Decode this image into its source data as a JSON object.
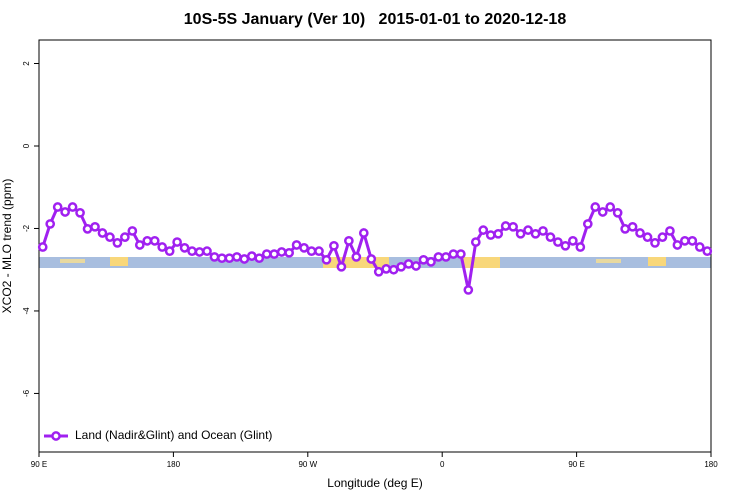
{
  "chart_data": {
    "type": "line",
    "title": "10S-5S January (Ver 10)   2015-01-01 to 2020-12-18",
    "x_label": "Longitude (deg E)",
    "y_label": "XCO2 - MLO trend (ppm)",
    "x": [
      92.5,
      97.5,
      102.5,
      107.5,
      112.5,
      117.5,
      122.5,
      127.5,
      132.5,
      137.5,
      142.5,
      147.5,
      152.5,
      157.5,
      162.5,
      167.5,
      172.5,
      177.5,
      182.5,
      187.5,
      192.5,
      197.5,
      202.5,
      207.5,
      212.5,
      217.5,
      222.5,
      227.5,
      232.5,
      237.5,
      242.5,
      247.5,
      252.5,
      257.5,
      262.5,
      267.5,
      272.5,
      277.5,
      282.5,
      287.5,
      292.5,
      297.5,
      302.5,
      307.5,
      312.5,
      317.5,
      322.5,
      327.5,
      332.5,
      337.5,
      342.5,
      347.5,
      352.5,
      357.5,
      362.5,
      367.5,
      372.5,
      377.5,
      382.5,
      387.5,
      392.5,
      397.5,
      402.5,
      407.5,
      412.5,
      417.5,
      422.5,
      427.5,
      432.5,
      437.5,
      442.5,
      447.5,
      452.5,
      457.5,
      462.5,
      467.5,
      472.5,
      477.5,
      482.5,
      487.5,
      492.5,
      497.5,
      502.5,
      507.5,
      512.5,
      517.5,
      522.5,
      527.5,
      532.5,
      537.5
    ],
    "series": [
      {
        "name": "Land (Nadir&Glint) and Ocean (Glint)",
        "color": "#a020f0",
        "values": [
          -2.45,
          -1.89,
          -1.48,
          -1.6,
          -1.48,
          -1.62,
          -2.01,
          -1.96,
          -2.11,
          -2.21,
          -2.35,
          -2.21,
          -2.06,
          -2.4,
          -2.3,
          -2.3,
          -2.45,
          -2.55,
          -2.33,
          -2.47,
          -2.55,
          -2.57,
          -2.55,
          -2.69,
          -2.72,
          -2.72,
          -2.69,
          -2.74,
          -2.67,
          -2.72,
          -2.62,
          -2.62,
          -2.57,
          -2.59,
          -2.4,
          -2.47,
          -2.55,
          -2.55,
          -2.76,
          -2.42,
          -2.93,
          -2.3,
          -2.69,
          -2.11,
          -2.74,
          -3.05,
          -2.98,
          -3.0,
          -2.93,
          -2.86,
          -2.91,
          -2.76,
          -2.81,
          -2.69,
          -2.69,
          -2.62,
          -2.62,
          -3.49,
          -2.33,
          -2.04,
          -2.16,
          -2.13,
          -1.94,
          -1.96,
          -2.13,
          -2.04,
          -2.13,
          -2.06,
          -2.21,
          -2.33,
          -2.42,
          -2.3,
          -2.45,
          -1.89,
          -1.48,
          -1.6,
          -1.48,
          -1.62,
          -2.01,
          -1.96,
          -2.11,
          -2.21,
          -2.35,
          -2.21,
          -2.06,
          -2.4,
          -2.3,
          -2.3,
          -2.45,
          -2.55
        ]
      }
    ],
    "xlim": [
      90,
      540
    ],
    "xticks": [
      {
        "value": 90,
        "label": "90 E"
      },
      180,
      {
        "value": 270,
        "label": "90 W"
      },
      {
        "value": 360,
        "label": "0"
      },
      {
        "value": 450,
        "label": "90 E"
      },
      {
        "value": 540,
        "label": "180"
      }
    ],
    "ylim": [
      -7.42,
      2.57
    ],
    "yticks": [
      -6,
      -4,
      -2,
      0,
      2
    ],
    "legend": "bottom-left",
    "grid": false
  }
}
